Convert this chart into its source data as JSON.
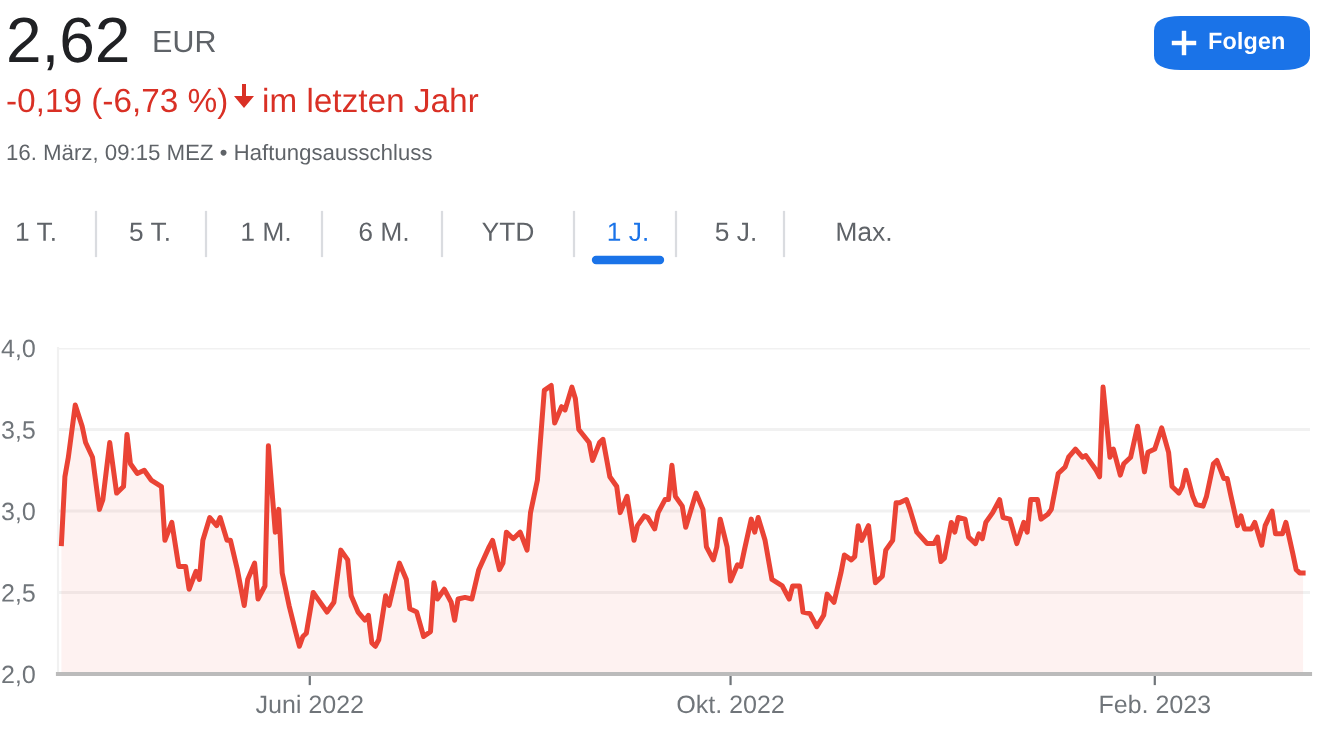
{
  "chart_data": {
    "type": "area",
    "title": "2,62",
    "subtitle": "-0,19 (-6,73 %)",
    "annotations": [
      "EUR",
      "im letzten Jahr",
      "16. März, 09:15 MEZ • Haftungsausschluss",
      "Folgen",
      "1 T.",
      "5 T.",
      "1 M.",
      "6 M.",
      "YTD",
      "1 J.",
      "5 J.",
      "Max."
    ],
    "x": [
      "2022-03-21",
      "2022-03-22",
      "2022-03-23",
      "2022-03-25",
      "2022-03-27",
      "2022-03-28",
      "2022-03-30",
      "2022-04-01",
      "2022-04-02",
      "2022-04-04",
      "2022-04-06",
      "2022-04-08",
      "2022-04-09",
      "2022-04-10",
      "2022-04-12",
      "2022-04-14",
      "2022-04-16",
      "2022-04-19",
      "2022-04-20",
      "2022-04-22",
      "2022-04-24",
      "2022-04-26",
      "2022-04-27",
      "2022-04-29",
      "2022-04-30",
      "2022-05-01",
      "2022-05-03",
      "2022-05-05",
      "2022-05-06",
      "2022-05-08",
      "2022-05-09",
      "2022-05-11",
      "2022-05-13",
      "2022-05-14",
      "2022-05-16",
      "2022-05-17",
      "2022-05-19",
      "2022-05-20",
      "2022-05-22",
      "2022-05-23",
      "2022-05-24",
      "2022-05-26",
      "2022-05-28",
      "2022-05-29",
      "2022-05-30",
      "2022-05-31",
      "2022-06-02",
      "2022-06-03",
      "2022-06-06",
      "2022-06-08",
      "2022-06-10",
      "2022-06-12",
      "2022-06-13",
      "2022-06-15",
      "2022-06-17",
      "2022-06-18",
      "2022-06-19",
      "2022-06-20",
      "2022-06-21",
      "2022-06-23",
      "2022-06-24",
      "2022-06-26",
      "2022-06-27",
      "2022-06-29",
      "2022-06-30",
      "2022-07-02",
      "2022-07-04",
      "2022-07-06",
      "2022-07-07",
      "2022-07-08",
      "2022-07-10",
      "2022-07-12",
      "2022-07-13",
      "2022-07-14",
      "2022-07-16",
      "2022-07-18",
      "2022-07-20",
      "2022-07-23",
      "2022-07-24",
      "2022-07-26",
      "2022-07-27",
      "2022-07-28",
      "2022-07-30",
      "2022-08-01",
      "2022-08-03",
      "2022-08-04",
      "2022-08-06",
      "2022-08-08",
      "2022-08-10",
      "2022-08-11",
      "2022-08-13",
      "2022-08-14",
      "2022-08-16",
      "2022-08-17",
      "2022-08-18",
      "2022-08-21",
      "2022-08-22",
      "2022-08-24",
      "2022-08-25",
      "2022-08-27",
      "2022-08-29",
      "2022-08-30",
      "2022-09-01",
      "2022-09-03",
      "2022-09-04",
      "2022-09-06",
      "2022-09-07",
      "2022-09-09",
      "2022-09-10",
      "2022-09-12",
      "2022-09-13",
      "2022-09-14",
      "2022-09-15",
      "2022-09-17",
      "2022-09-18",
      "2022-09-21",
      "2022-09-23",
      "2022-09-24",
      "2022-09-26",
      "2022-09-27",
      "2022-09-28",
      "2022-09-30",
      "2022-10-01",
      "2022-10-03",
      "2022-10-04",
      "2022-10-05",
      "2022-10-07",
      "2022-10-08",
      "2022-10-09",
      "2022-10-11",
      "2022-10-13",
      "2022-10-16",
      "2022-10-18",
      "2022-10-19",
      "2022-10-21",
      "2022-10-22",
      "2022-10-24",
      "2022-10-26",
      "2022-10-28",
      "2022-10-29",
      "2022-10-31",
      "2022-11-02",
      "2022-11-03",
      "2022-11-05",
      "2022-11-06",
      "2022-11-07",
      "2022-11-08",
      "2022-11-10",
      "2022-11-12",
      "2022-11-14",
      "2022-11-15",
      "2022-11-17",
      "2022-11-18",
      "2022-11-19",
      "2022-11-21",
      "2022-11-22",
      "2022-11-24",
      "2022-11-27",
      "2022-11-29",
      "2022-11-30",
      "2022-12-01",
      "2022-12-02",
      "2022-12-04",
      "2022-12-05",
      "2022-12-06",
      "2022-12-08",
      "2022-12-09",
      "2022-12-11",
      "2022-12-12",
      "2022-12-13",
      "2022-12-14",
      "2022-12-16",
      "2022-12-18",
      "2022-12-19",
      "2022-12-21",
      "2022-12-23",
      "2022-12-25",
      "2022-12-26",
      "2022-12-27",
      "2022-12-29",
      "2022-12-30",
      "2023-01-01",
      "2023-01-02",
      "2023-01-04",
      "2023-01-06",
      "2023-01-07",
      "2023-01-09",
      "2023-01-11",
      "2023-01-12",
      "2023-01-15",
      "2023-01-16",
      "2023-01-17",
      "2023-01-19",
      "2023-01-20",
      "2023-01-22",
      "2023-01-23",
      "2023-01-25",
      "2023-01-27",
      "2023-01-29",
      "2023-01-30",
      "2023-02-01",
      "2023-02-03",
      "2023-02-05",
      "2023-02-06",
      "2023-02-08",
      "2023-02-09",
      "2023-02-10",
      "2023-02-12",
      "2023-02-13",
      "2023-02-15",
      "2023-02-16",
      "2023-02-18",
      "2023-02-19",
      "2023-02-21",
      "2023-02-22",
      "2023-02-23",
      "2023-02-25",
      "2023-02-26",
      "2023-02-27",
      "2023-03-01",
      "2023-03-02",
      "2023-03-04",
      "2023-03-05",
      "2023-03-07",
      "2023-03-08",
      "2023-03-10",
      "2023-03-11",
      "2023-03-13",
      "2023-03-14",
      "2023-03-15",
      "2023-03-16"
    ],
    "series": [
      {
        "color": "#ea4335",
        "values": [
          2.8,
          3.21,
          3.33,
          3.65,
          3.52,
          3.42,
          3.33,
          3.01,
          3.07,
          3.42,
          3.11,
          3.15,
          3.47,
          3.29,
          3.23,
          3.25,
          3.19,
          3.15,
          2.82,
          2.93,
          2.66,
          2.66,
          2.52,
          2.63,
          2.58,
          2.82,
          2.96,
          2.91,
          2.96,
          2.82,
          2.82,
          2.64,
          2.42,
          2.58,
          2.68,
          2.46,
          2.54,
          3.4,
          2.87,
          3.01,
          2.62,
          2.42,
          2.25,
          2.17,
          2.23,
          2.25,
          2.5,
          2.47,
          2.38,
          2.44,
          2.76,
          2.7,
          2.48,
          2.38,
          2.33,
          2.36,
          2.19,
          2.17,
          2.21,
          2.48,
          2.42,
          2.6,
          2.68,
          2.58,
          2.4,
          2.38,
          2.23,
          2.26,
          2.56,
          2.46,
          2.52,
          2.44,
          2.33,
          2.46,
          2.47,
          2.46,
          2.64,
          2.78,
          2.82,
          2.64,
          2.68,
          2.87,
          2.83,
          2.87,
          2.76,
          2.99,
          3.19,
          3.74,
          3.77,
          3.54,
          3.64,
          3.62,
          3.76,
          3.69,
          3.5,
          3.42,
          3.31,
          3.42,
          3.44,
          3.21,
          3.15,
          2.99,
          3.09,
          2.82,
          2.91,
          2.97,
          2.96,
          2.89,
          2.99,
          3.07,
          3.07,
          3.28,
          3.09,
          3.03,
          2.9,
          3.11,
          3.01,
          2.78,
          2.7,
          2.78,
          2.95,
          2.78,
          2.57,
          2.67,
          2.66,
          2.76,
          2.95,
          2.87,
          2.96,
          2.82,
          2.58,
          2.54,
          2.46,
          2.54,
          2.54,
          2.38,
          2.37,
          2.29,
          2.36,
          2.49,
          2.44,
          2.62,
          2.73,
          2.7,
          2.72,
          2.91,
          2.82,
          2.91,
          2.56,
          2.6,
          2.76,
          2.82,
          3.05,
          3.05,
          3.07,
          3.01,
          2.87,
          2.8,
          2.8,
          2.84,
          2.69,
          2.71,
          2.93,
          2.87,
          2.96,
          2.95,
          2.84,
          2.8,
          2.86,
          2.83,
          2.93,
          2.99,
          3.07,
          2.96,
          2.95,
          2.8,
          2.93,
          2.87,
          3.07,
          3.07,
          2.95,
          2.98,
          3.01,
          3.23,
          3.27,
          3.33,
          3.38,
          3.33,
          3.34,
          3.25,
          3.21,
          3.76,
          3.33,
          3.38,
          3.22,
          3.29,
          3.33,
          3.52,
          3.24,
          3.36,
          3.38,
          3.51,
          3.36,
          3.15,
          3.11,
          3.15,
          3.25,
          3.09,
          3.04,
          3.03,
          3.09,
          3.29,
          3.31,
          3.2,
          3.2,
          3.1,
          2.91,
          2.97,
          2.89,
          2.89,
          2.93,
          2.79,
          2.91,
          3.0,
          2.86,
          2.86,
          2.93,
          2.74,
          2.64,
          2.62,
          2.62
        ]
      }
    ],
    "xlim": [
      "2022-03-20",
      "2023-03-18"
    ],
    "xticks": [
      {
        "value": "2022-06-01",
        "label": "Juni 2022"
      },
      {
        "value": "2022-10-01",
        "label": "Okt. 2022"
      },
      {
        "value": "2023-02-01",
        "label": "Feb. 2023"
      }
    ],
    "ylim": [
      2.0,
      4.0
    ],
    "yticks": [
      {
        "value": 2.0,
        "label": "2,0"
      },
      {
        "value": 2.5,
        "label": "2,5"
      },
      {
        "value": 3.0,
        "label": "3,0"
      },
      {
        "value": 3.5,
        "label": "3,5"
      },
      {
        "value": 4.0,
        "label": "4,0"
      }
    ],
    "grid": "y",
    "legend": false
  }
}
